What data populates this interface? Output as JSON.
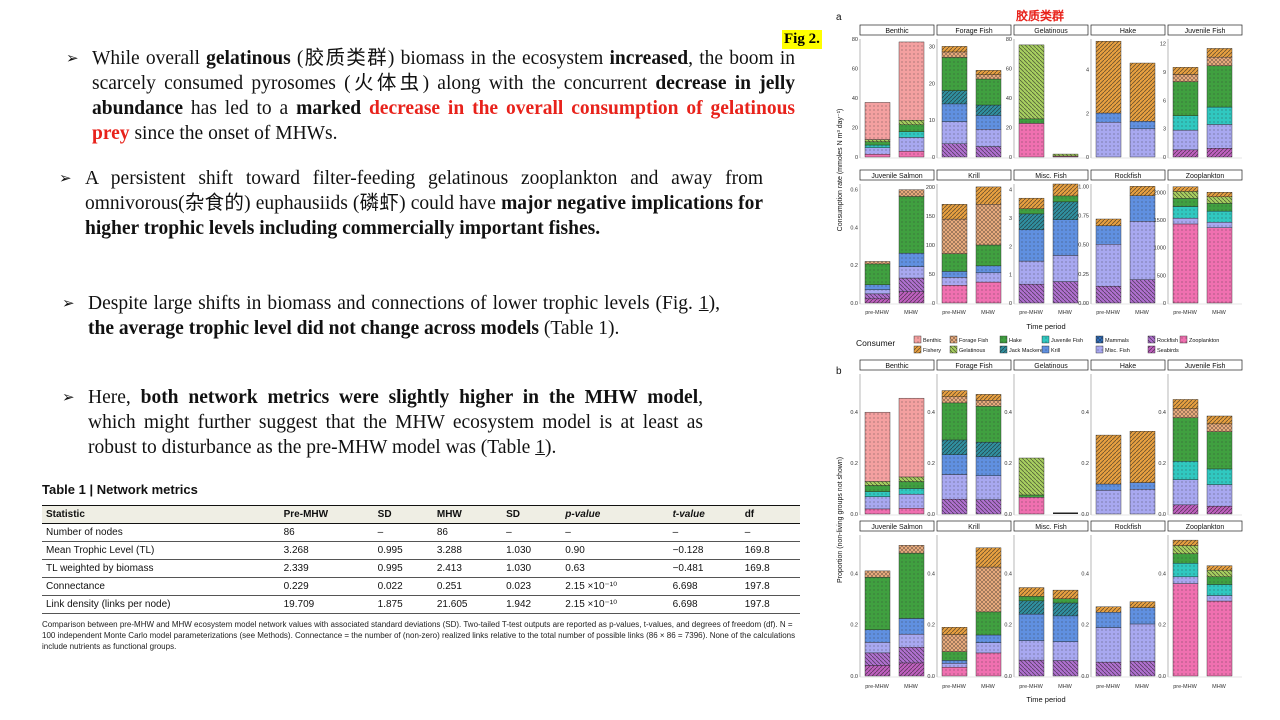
{
  "bullets": [
    {
      "parts": [
        {
          "t": "While overall ",
          "s": ""
        },
        {
          "t": "gelatinous",
          "s": "b"
        },
        {
          "t": " (胶质类群) biomass in the ecosystem ",
          "s": ""
        },
        {
          "t": "increased",
          "s": "b"
        },
        {
          "t": ", the boom in scarcely consumed pyrosomes (火体虫) along with the concurrent ",
          "s": ""
        },
        {
          "t": "decrease in jelly abundance",
          "s": "b"
        },
        {
          "t": " has led to a ",
          "s": ""
        },
        {
          "t": "marked ",
          "s": "b"
        },
        {
          "t": "decrease in the overall consumption of gelatinous prey",
          "s": "br"
        },
        {
          "t": " since the onset of MHWs.",
          "s": ""
        }
      ]
    },
    {
      "parts": [
        {
          "t": "A persistent shift toward filter-feeding gelatinous zooplankton and away from omnivorous(杂食的) euphausiids (磷虾) could have ",
          "s": ""
        },
        {
          "t": "major negative implications for higher trophic levels including commercially important fishes.",
          "s": "b"
        }
      ]
    },
    {
      "parts": [
        {
          "t": "Despite large shifts in biomass and connections of lower trophic levels (Fig. ",
          "s": ""
        },
        {
          "t": "1",
          "s": "u"
        },
        {
          "t": "), ",
          "s": ""
        },
        {
          "t": "the average trophic level did not change across models",
          "s": "b"
        },
        {
          "t": " (Table 1).",
          "s": ""
        }
      ]
    },
    {
      "parts": [
        {
          "t": "Here, ",
          "s": ""
        },
        {
          "t": "both network metrics were slightly higher in the MHW model",
          "s": "b"
        },
        {
          "t": ", which might further suggest that the MHW ecosystem model is at least as robust to disturbance as the pre-MHW model was (Table ",
          "s": ""
        },
        {
          "t": "1",
          "s": "u"
        },
        {
          "t": ").",
          "s": ""
        }
      ]
    }
  ],
  "table": {
    "title": "Table 1 | Network metrics",
    "headers": [
      "Statistic",
      "Pre-MHW",
      "SD",
      "MHW",
      "SD",
      "p-value",
      "t-value",
      "df"
    ],
    "rows": [
      [
        "Number of nodes",
        "86",
        "–",
        "86",
        "–",
        "–",
        "–",
        "–"
      ],
      [
        "Mean Trophic Level (TL)",
        "3.268",
        "0.995",
        "3.288",
        "1.030",
        "0.90",
        "−0.128",
        "169.8"
      ],
      [
        "TL weighted by biomass",
        "2.339",
        "0.995",
        "2.413",
        "1.030",
        "0.63",
        "−0.481",
        "169.8"
      ],
      [
        "Connectance",
        "0.229",
        "0.022",
        "0.251",
        "0.023",
        "2.15 ×10⁻¹⁰",
        "6.698",
        "197.8"
      ],
      [
        "Link density (links per node)",
        "19.709",
        "1.875",
        "21.605",
        "1.942",
        "2.15 ×10⁻¹⁰",
        "6.698",
        "197.8"
      ]
    ],
    "caption": "Comparison between pre-MHW and MHW ecosystem model network values with associated standard deviations (SD). Two-tailed T-test outputs are reported as p-values, t-values, and degrees of freedom (df). N = 100 independent Monte Carlo model parameterizations (see Methods). Connectance = the number of (non-zero) realized links relative to the total number of possible links (86 × 86 = 7396). None of the calculations include nutrients as functional groups."
  },
  "fig_label": "Fig 2.",
  "figure": {
    "panel_a_label": "a",
    "panel_b_label": "b",
    "annotation": "胶质类群",
    "ylabel_a": "Consumption rate (mmoles N m³ day⁻¹)",
    "ylabel_b": "Proportion (non-living groups not shown)",
    "xlabel": "Time period",
    "xticks": [
      "pre-MHW",
      "MHW"
    ],
    "legend_title": "Consumer",
    "legend": [
      {
        "name": "Benthic",
        "color": "#f4a0a0"
      },
      {
        "name": "Fishery",
        "color": "#e8a040"
      },
      {
        "name": "Forage Fish",
        "color": "#f0b080"
      },
      {
        "name": "Gelatinous",
        "color": "#a8d060"
      },
      {
        "name": "Hake",
        "color": "#40a040"
      },
      {
        "name": "Jack Mackerel",
        "color": "#3090a0"
      },
      {
        "name": "Juvenile Fish",
        "color": "#30c8c0"
      },
      {
        "name": "Krill",
        "color": "#6090e0"
      },
      {
        "name": "Mammals",
        "color": "#3070c0"
      },
      {
        "name": "Misc. Fish",
        "color": "#a8a8f0"
      },
      {
        "name": "Rockfish",
        "color": "#b070d0"
      },
      {
        "name": "Seabirds",
        "color": "#c060c0"
      },
      {
        "name": "Zooplankton",
        "color": "#f070b0"
      }
    ]
  },
  "chart_data": [
    {
      "type": "bar",
      "title": "a",
      "ylabel": "Consumption rate (mmoles N m³ day⁻¹)",
      "xlabel": "Time period",
      "categories": [
        "pre-MHW",
        "MHW"
      ],
      "panels": [
        {
          "name": "Benthic",
          "yticks": [
            "0",
            "20",
            "40",
            "60",
            "80"
          ],
          "ymax": 80,
          "values": [
            37,
            78
          ]
        },
        {
          "name": "Forage Fish",
          "yticks": [
            "0",
            "10",
            "20",
            "30"
          ],
          "ymax": 32,
          "values": [
            30,
            23.5
          ]
        },
        {
          "name": "Gelatinous",
          "yticks": [
            "0",
            "20",
            "40",
            "60",
            "80"
          ],
          "ymax": 80,
          "values": [
            76,
            2
          ]
        },
        {
          "name": "Hake",
          "yticks": [
            "0",
            "2",
            "4"
          ],
          "ymax": 5.4,
          "values": [
            5.3,
            4.3
          ]
        },
        {
          "name": "Juvenile Fish",
          "yticks": [
            "0",
            "3",
            "6",
            "9",
            "12"
          ],
          "ymax": 12.5,
          "values": [
            9.5,
            11.5
          ]
        },
        {
          "name": "Juvenile Salmon",
          "yticks": [
            "0.0",
            "0.2",
            "0.4",
            "0.6"
          ],
          "ymax": 0.63,
          "values": [
            0.22,
            0.6
          ]
        },
        {
          "name": "Krill",
          "yticks": [
            "0",
            "50",
            "100",
            "150",
            "200"
          ],
          "ymax": 205,
          "values": [
            170,
            200
          ]
        },
        {
          "name": "Misc. Fish",
          "yticks": [
            "0",
            "1",
            "2",
            "3",
            "4"
          ],
          "ymax": 4.2,
          "values": [
            3.7,
            4.2
          ]
        },
        {
          "name": "Rockfish",
          "yticks": [
            "0.00",
            "0.25",
            "0.50",
            "0.75",
            "1.00"
          ],
          "ymax": 1.02,
          "values": [
            0.72,
            1.0
          ]
        },
        {
          "name": "Zooplankton",
          "yticks": [
            "0",
            "500",
            "1000",
            "1500",
            "2000"
          ],
          "ymax": 2150,
          "values": [
            2100,
            2000
          ]
        }
      ]
    },
    {
      "type": "bar",
      "title": "b",
      "ylabel": "Proportion (non-living groups not shown)",
      "xlabel": "Time period",
      "categories": [
        "pre-MHW",
        "MHW"
      ],
      "yticks": [
        "0.0",
        "0.2",
        "0.4"
      ],
      "ymax": 0.55,
      "panels": [
        {
          "name": "Benthic",
          "values": [
            0.4,
            0.455
          ]
        },
        {
          "name": "Forage Fish",
          "values": [
            0.485,
            0.47
          ]
        },
        {
          "name": "Gelatinous",
          "values": [
            0.22,
            0.0
          ]
        },
        {
          "name": "Hake",
          "values": [
            0.31,
            0.325
          ]
        },
        {
          "name": "Juvenile Fish",
          "values": [
            0.45,
            0.385
          ]
        },
        {
          "name": "Juvenile Salmon",
          "values": [
            0.41,
            0.51
          ]
        },
        {
          "name": "Krill",
          "values": [
            0.19,
            0.5
          ]
        },
        {
          "name": "Misc. Fish",
          "values": [
            0.345,
            0.335
          ]
        },
        {
          "name": "Rockfish",
          "values": [
            0.27,
            0.29
          ]
        },
        {
          "name": "Zooplankton",
          "values": [
            0.53,
            0.43
          ]
        }
      ]
    }
  ]
}
